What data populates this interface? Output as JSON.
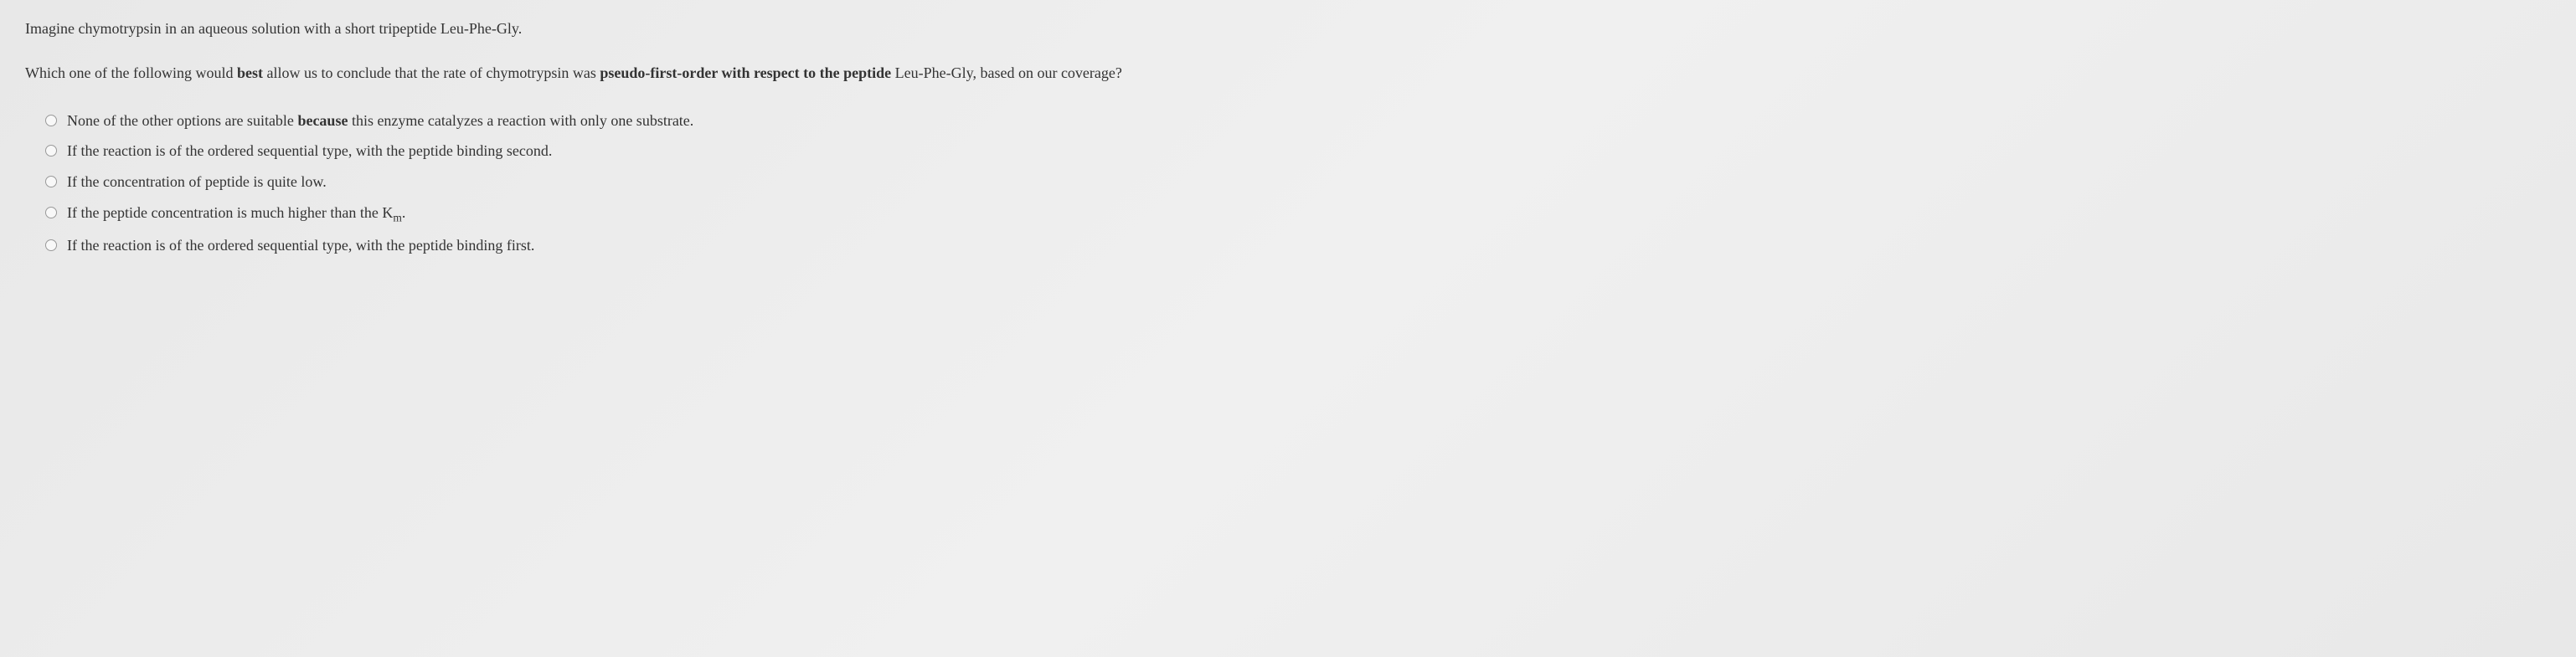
{
  "question": {
    "intro": "Imagine chymotrypsin in an aqueous solution with a short tripeptide Leu-Phe-Gly.",
    "body_part1": "Which one of the following would ",
    "body_bold1": "best",
    "body_part2": " allow us to conclude that the rate of chymotrypsin was ",
    "body_bold2": "pseudo-first-order with respect to the peptide",
    "body_part3": " Leu-Phe-Gly, based on our coverage?"
  },
  "options": [
    {
      "pre": "None of the other options are suitable ",
      "bold": "because",
      "post": " this enzyme catalyzes a reaction with only one substrate."
    },
    {
      "pre": "If the reaction is of the ordered sequential type, with the peptide binding second.",
      "bold": "",
      "post": ""
    },
    {
      "pre": "If the concentration of peptide is quite low.",
      "bold": "",
      "post": ""
    },
    {
      "pre": "If the peptide concentration is much higher than the K",
      "bold": "",
      "post": ".",
      "sub": "m"
    },
    {
      "pre": "If the reaction is of the ordered sequential type, with the peptide binding first.",
      "bold": "",
      "post": ""
    }
  ],
  "styling": {
    "background_color": "#eeeeee",
    "text_color": "#333333",
    "font_family": "Georgia, serif",
    "font_size_base": 18,
    "radio_border_color": "#999999",
    "radio_background": "#f8f8f8"
  }
}
